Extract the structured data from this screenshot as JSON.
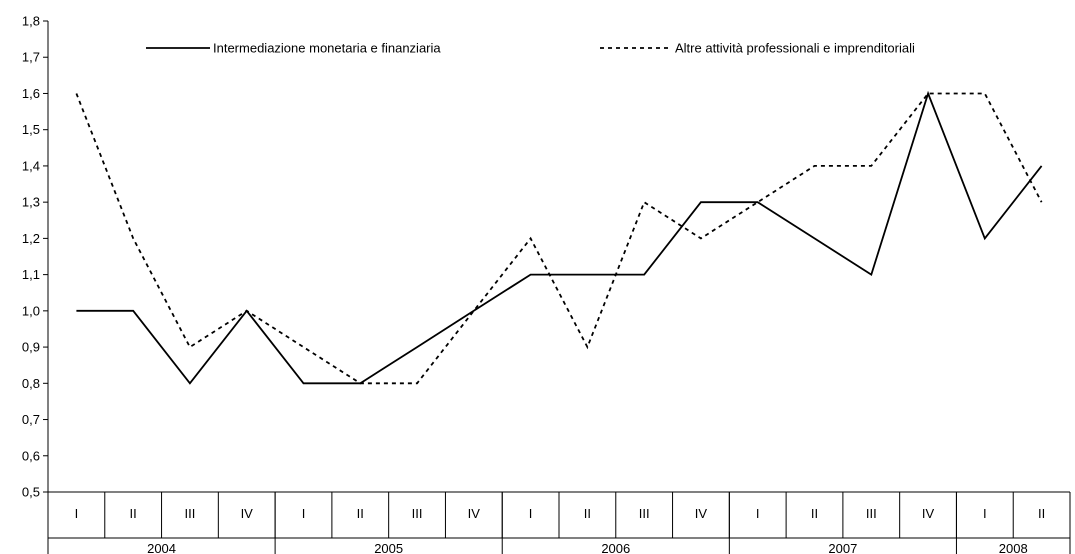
{
  "chart_data": {
    "type": "line",
    "title": "",
    "xlabel": "",
    "ylabel": "",
    "ylim": [
      0.5,
      1.8
    ],
    "y_ticks": [
      "0,5",
      "0,6",
      "0,7",
      "0,8",
      "0,9",
      "1,0",
      "1,1",
      "1,2",
      "1,3",
      "1,4",
      "1,5",
      "1,6",
      "1,7",
      "1,8"
    ],
    "quarters": [
      "I",
      "II",
      "III",
      "IV",
      "I",
      "II",
      "III",
      "IV",
      "I",
      "II",
      "III",
      "IV",
      "I",
      "II",
      "III",
      "IV",
      "I",
      "II"
    ],
    "years": [
      {
        "label": "2004",
        "count": 4
      },
      {
        "label": "2005",
        "count": 4
      },
      {
        "label": "2006",
        "count": 4
      },
      {
        "label": "2007",
        "count": 4
      },
      {
        "label": "2008",
        "count": 2
      }
    ],
    "legend_position": "top",
    "grid": false,
    "series": [
      {
        "name": "Intermediazione monetaria e finanziaria",
        "style": "solid",
        "color": "#000000",
        "values": [
          1.0,
          1.0,
          0.8,
          1.0,
          0.8,
          0.8,
          0.9,
          1.0,
          1.1,
          1.1,
          1.1,
          1.3,
          1.3,
          1.2,
          1.1,
          1.6,
          1.2,
          1.4
        ]
      },
      {
        "name": "Altre attività professionali e imprenditoriali",
        "style": "dashed",
        "color": "#000000",
        "values": [
          1.6,
          1.2,
          0.9,
          1.0,
          0.9,
          0.8,
          0.8,
          1.0,
          1.2,
          0.9,
          1.3,
          1.2,
          1.3,
          1.4,
          1.4,
          1.6,
          1.6,
          1.3
        ]
      }
    ]
  }
}
